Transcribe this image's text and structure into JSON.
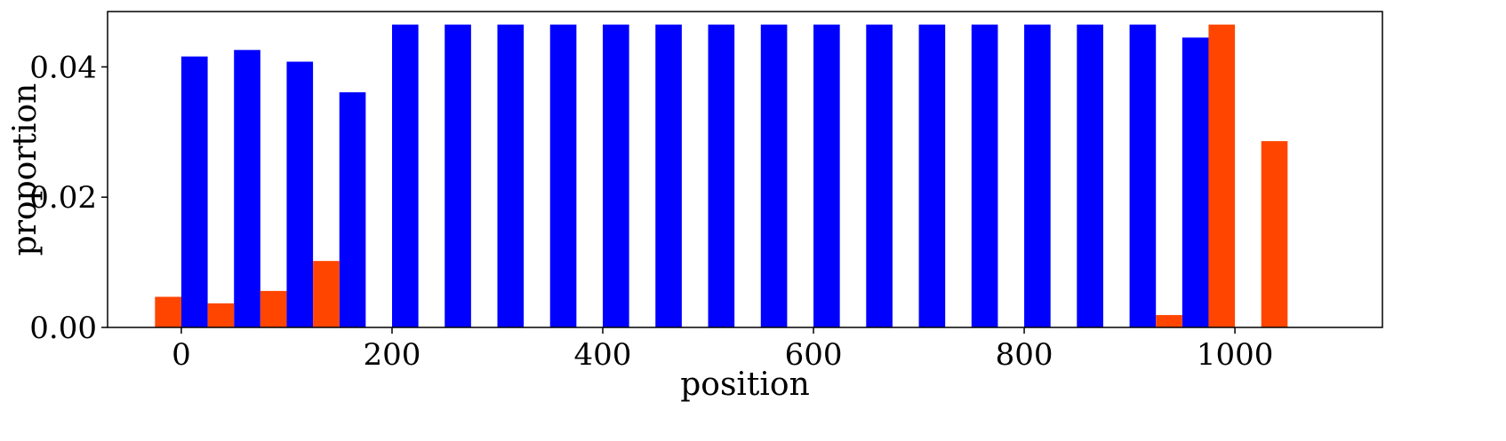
{
  "chart_data": {
    "type": "bar",
    "title": "",
    "xlabel": "position",
    "ylabel": "proportion",
    "xlim": [
      -70,
      1140
    ],
    "ylim": [
      0,
      0.0485
    ],
    "xticks": [
      0,
      200,
      400,
      600,
      800,
      1000
    ],
    "yticks": [
      0,
      0.02,
      0.04
    ],
    "xtick_labels": [
      "0",
      "200",
      "400",
      "600",
      "800",
      "1000"
    ],
    "ytick_labels": [
      "0.00",
      "0.02",
      "0.04"
    ],
    "grid": false,
    "bar_width": 25,
    "series": [
      {
        "color": "#0000ff",
        "x": [
          12.5,
          62.5,
          112.5,
          162.5,
          212.5,
          262.5,
          312.5,
          362.5,
          412.5,
          462.5,
          512.5,
          562.5,
          612.5,
          662.5,
          712.5,
          762.5,
          812.5,
          862.5,
          912.5,
          962.5,
          1012.5,
          1062.5
        ],
        "values": [
          0.0416,
          0.0426,
          0.0408,
          0.0361,
          0.0465,
          0.0465,
          0.0465,
          0.0465,
          0.0465,
          0.0465,
          0.0465,
          0.0465,
          0.0465,
          0.0465,
          0.0465,
          0.0465,
          0.0465,
          0.0465,
          0.0465,
          0.0445,
          0,
          0
        ]
      },
      {
        "color": "#ff4500",
        "x": [
          -12.5,
          37.5,
          87.5,
          137.5,
          187.5,
          237.5,
          287.5,
          337.5,
          387.5,
          437.5,
          487.5,
          537.5,
          587.5,
          637.5,
          687.5,
          737.5,
          787.5,
          837.5,
          887.5,
          937.5,
          987.5,
          1037.5
        ],
        "values": [
          0.0047,
          0.0037,
          0.0056,
          0.0102,
          0,
          0,
          0,
          0,
          0,
          0,
          0,
          0,
          0,
          0,
          0,
          0,
          0,
          0,
          0,
          0.0019,
          0.0465,
          0.0286
        ]
      }
    ]
  }
}
